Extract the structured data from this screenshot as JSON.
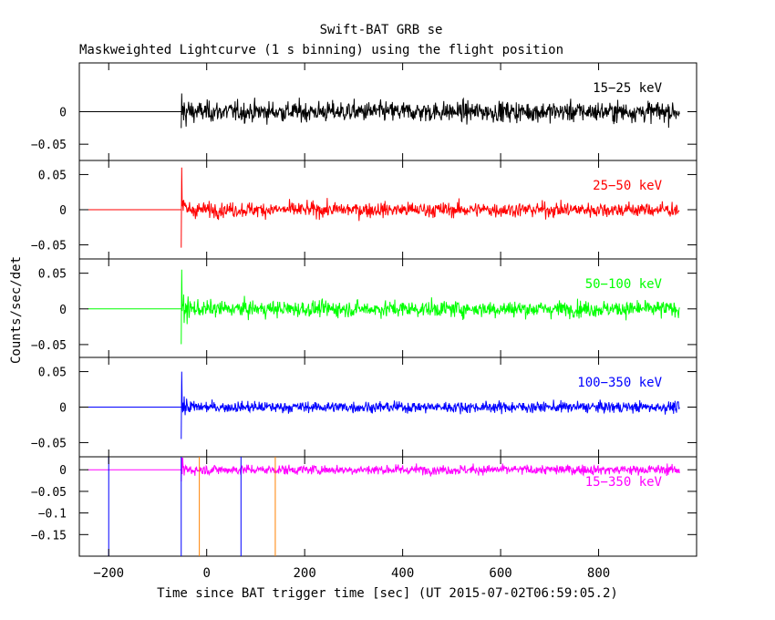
{
  "chart_data": {
    "type": "line",
    "title": "Swift-BAT GRB se",
    "subtitle": "Maskweighted Lightcurve (1 s binning) using the flight position",
    "xlabel": "Time since BAT trigger time [sec] (UT 2015-07-02T06:59:05.2)",
    "ylabel": "Counts/sec/det",
    "xlim": [
      -260,
      1000
    ],
    "x_ticks": [
      -200,
      0,
      200,
      400,
      600,
      800
    ],
    "x_tick_labels": [
      "−200",
      "0",
      "200",
      "400",
      "600",
      "800"
    ],
    "time_range": [
      -243,
      965
    ],
    "data_start": -52,
    "panels": [
      {
        "name": "15-25 keV",
        "label": "15−25 keV",
        "color": "#000000",
        "ylim": [
          -0.075,
          0.075
        ],
        "y_ticks": [
          0,
          -0.05
        ],
        "y_tick_labels": [
          "0",
          "−0.05"
        ],
        "noise_sigma": 0.011,
        "spike": 0.028
      },
      {
        "name": "25-50 keV",
        "label": "25−50 keV",
        "color": "#ff0000",
        "ylim": [
          -0.07,
          0.07
        ],
        "y_ticks": [
          0.05,
          0,
          -0.05
        ],
        "y_tick_labels": [
          "0.05",
          "0",
          "−0.05"
        ],
        "noise_sigma": 0.0075,
        "spike": 0.06
      },
      {
        "name": "50-100 keV",
        "label": "50−100 keV",
        "color": "#00ff00",
        "ylim": [
          -0.068,
          0.07
        ],
        "y_ticks": [
          0.05,
          0,
          -0.05
        ],
        "y_tick_labels": [
          "0.05",
          "0",
          "−0.05"
        ],
        "noise_sigma": 0.008,
        "spike": 0.055
      },
      {
        "name": "100-350 keV",
        "label": "100−350 keV",
        "color": "#0000ff",
        "ylim": [
          -0.07,
          0.07
        ],
        "y_ticks": [
          0.05,
          0,
          -0.05
        ],
        "y_tick_labels": [
          "0.05",
          "0",
          "−0.05"
        ],
        "noise_sigma": 0.0055,
        "spike": 0.05
      },
      {
        "name": "15-350 keV",
        "label": "15−350 keV",
        "color": "#ff00ff",
        "ylim": [
          -0.2,
          0.03
        ],
        "y_ticks": [
          0,
          -0.05,
          -0.1,
          -0.15
        ],
        "y_tick_labels": [
          "0",
          "−0.05",
          "−0.1",
          "−0.15"
        ],
        "noise_sigma": 0.008,
        "spike": 0.03,
        "vlines": [
          {
            "x": -200,
            "color": "#0000ff"
          },
          {
            "x": -52,
            "color": "#0000ff"
          },
          {
            "x": -15,
            "color": "#ff8000"
          },
          {
            "x": 70,
            "color": "#0000ff"
          },
          {
            "x": 140,
            "color": "#ff8000"
          }
        ]
      }
    ]
  }
}
